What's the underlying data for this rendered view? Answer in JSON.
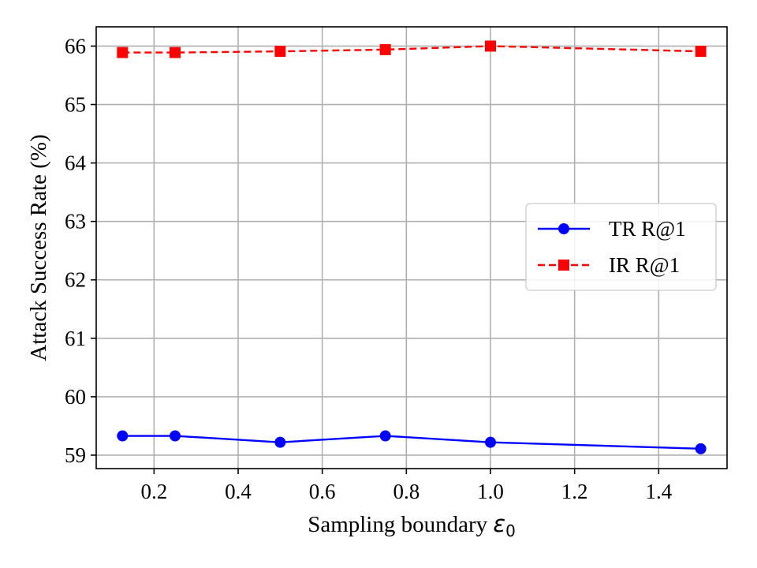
{
  "chart_data": {
    "type": "line",
    "title": "",
    "xlabel": "Sampling boundary",
    "xlabel_symbol": "ε",
    "xlabel_subscript": "0",
    "ylabel": "Attack Success Rate (%)",
    "x": [
      0.125,
      0.25,
      0.5,
      0.75,
      1.0,
      1.5
    ],
    "xlim": [
      0.0625,
      1.5625
    ],
    "ylim": [
      58.77,
      66.33
    ],
    "xticks": [
      0.2,
      0.4,
      0.6,
      0.8,
      1.0,
      1.2,
      1.4
    ],
    "xtick_labels": [
      "0.2",
      "0.4",
      "0.6",
      "0.8",
      "1.0",
      "1.2",
      "1.4"
    ],
    "yticks": [
      59,
      60,
      61,
      62,
      63,
      64,
      65,
      66
    ],
    "ytick_labels": [
      "59",
      "60",
      "61",
      "62",
      "63",
      "64",
      "65",
      "66"
    ],
    "grid": true,
    "legend_position": "center-right",
    "series": [
      {
        "name": "TR R@1",
        "values": [
          59.33,
          59.33,
          59.22,
          59.33,
          59.22,
          59.11
        ],
        "color": "#0000ff",
        "linestyle": "solid",
        "marker": "circle"
      },
      {
        "name": "IR R@1",
        "values": [
          65.89,
          65.89,
          65.91,
          65.94,
          66.0,
          65.91
        ],
        "color": "#ff0000",
        "linestyle": "dashed",
        "marker": "square"
      }
    ]
  }
}
